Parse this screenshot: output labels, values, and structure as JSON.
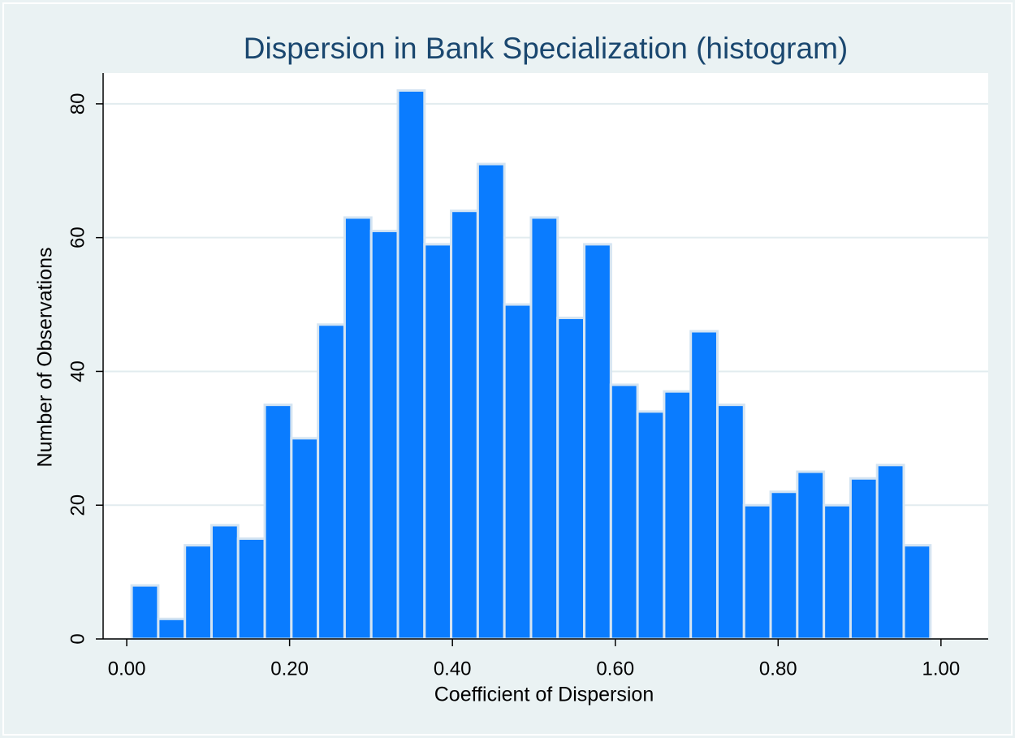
{
  "chart_data": {
    "type": "histogram",
    "title": "Dispersion in Bank Specialization (histogram)",
    "x_label": "Coefficient of Dispersion",
    "y_label": "Number of Observations",
    "bins": [
      0.006,
      0.0387,
      0.0714,
      0.1041,
      0.1368,
      0.1695,
      0.2022,
      0.2349,
      0.2676,
      0.3003,
      0.333,
      0.3657,
      0.3984,
      0.4311,
      0.4638,
      0.4965,
      0.5292,
      0.5619,
      0.5946,
      0.6273,
      0.66,
      0.6927,
      0.7254,
      0.7581,
      0.7908,
      0.8235,
      0.8562,
      0.8889,
      0.9216,
      0.9543,
      0.987
    ],
    "values": [
      8,
      3,
      14,
      17,
      15,
      35,
      30,
      47,
      63,
      61,
      82,
      59,
      64,
      71,
      50,
      63,
      48,
      59,
      38,
      34,
      37,
      46,
      35,
      20,
      22,
      25,
      20,
      24,
      26,
      14
    ],
    "color": "#0a7cff",
    "xlim": [
      -0.029,
      1.058
    ],
    "ylim": [
      0,
      84.6
    ],
    "xticks": [
      {
        "value": 0,
        "label": "0.00"
      },
      {
        "value": 0.2,
        "label": "0.20"
      },
      {
        "value": 0.4,
        "label": "0.40"
      },
      {
        "value": 0.6,
        "label": "0.60"
      },
      {
        "value": 0.8,
        "label": "0.80"
      },
      {
        "value": 1,
        "label": "1.00"
      }
    ],
    "yticks": [
      0,
      20,
      40,
      60,
      80
    ],
    "grid": true
  }
}
